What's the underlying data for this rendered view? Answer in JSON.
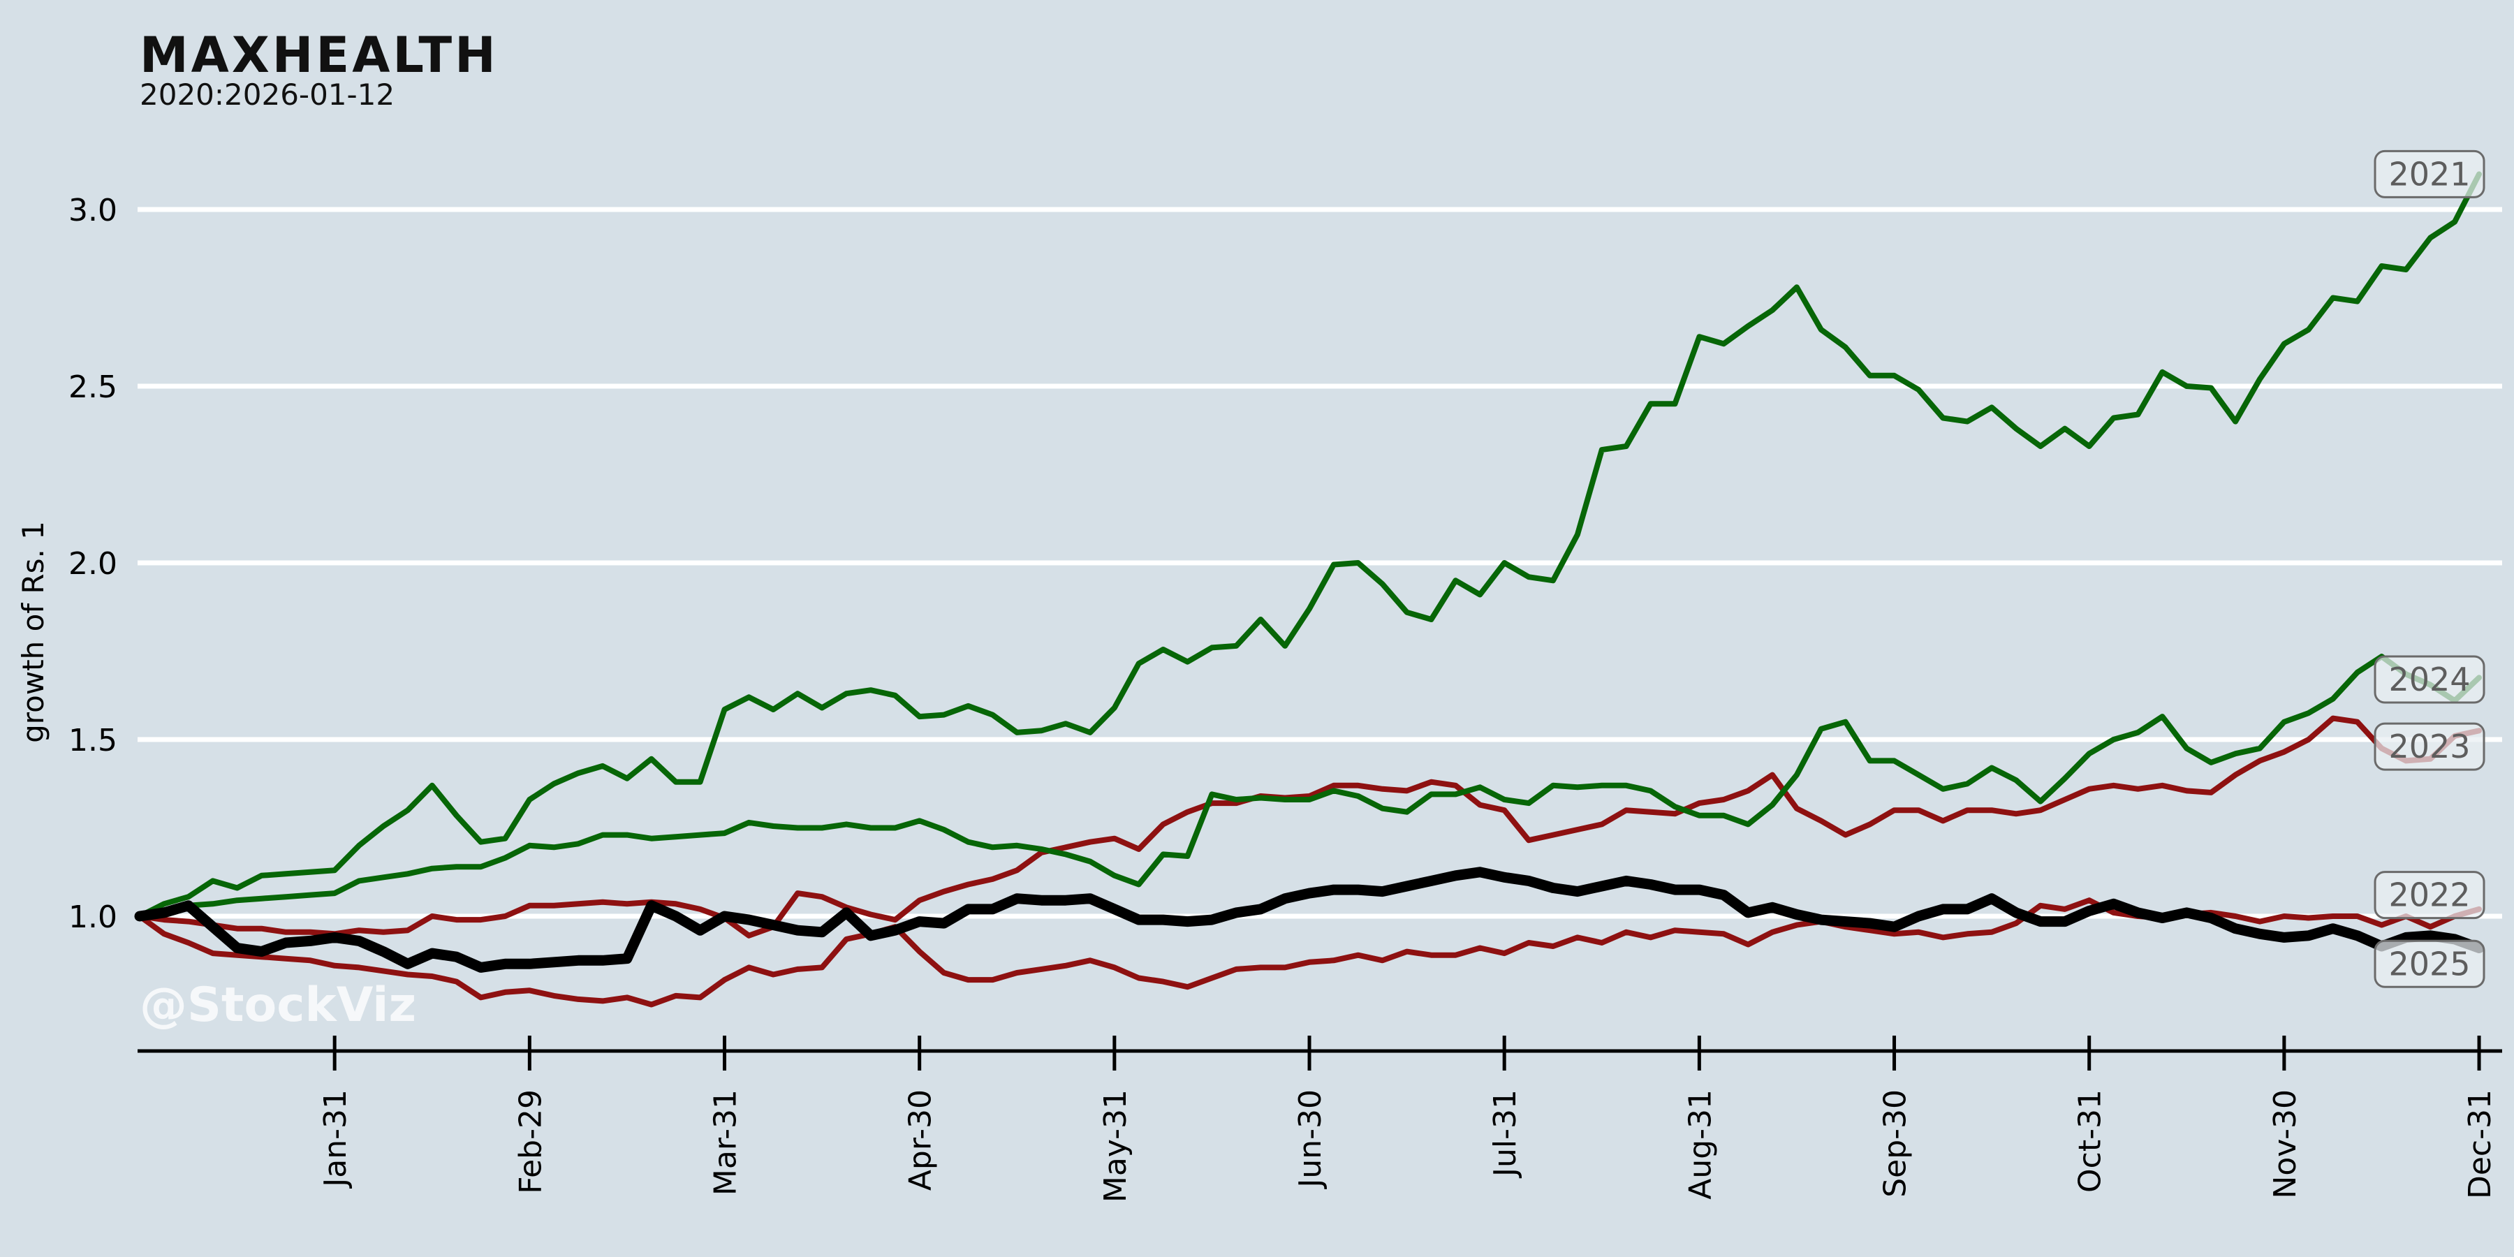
{
  "header": {
    "title": "MAXHEALTH",
    "subtitle": "2020:2026-01-12"
  },
  "watermark": "@StockViz",
  "colors": {
    "background": "#d6e0e7",
    "gridline": "#ffffff",
    "axis": "#000000",
    "green_series": "#076607",
    "red_series": "#8e1111",
    "black_series": "#000000",
    "label_box_fill": "#e9eff3",
    "label_box_border": "#6a6a6a",
    "label_text": "#5d5d5d"
  },
  "chart_data": {
    "type": "line",
    "title": "MAXHEALTH",
    "subtitle": "2020:2026-01-12",
    "ylabel": "growth of Rs. 1",
    "xlabel": "",
    "grid": "horizontal-white",
    "legend_position": "right-edge-boxes",
    "ylim": [
      0.68,
      3.22
    ],
    "y_ticks": [
      "1.0",
      "1.5",
      "2.0",
      "2.5",
      "3.0"
    ],
    "y_tick_values": [
      1.0,
      1.5,
      2.0,
      2.5,
      3.0
    ],
    "x_tick_labels": [
      "Jan-31",
      "Feb-29",
      "Mar-31",
      "Apr-30",
      "May-31",
      "Jun-30",
      "Jul-31",
      "Aug-31",
      "Sep-30",
      "Oct-31",
      "Nov-30",
      "Dec-31"
    ],
    "x_tick_months": [
      1,
      2,
      3,
      4,
      5,
      6,
      7,
      8,
      9,
      10,
      11,
      12
    ],
    "x_start_month": 0,
    "x_step_month": 0.125,
    "series": [
      {
        "name": "2021",
        "color": "#076607",
        "width": 8,
        "values": [
          1.0,
          1.035,
          1.055,
          1.1,
          1.08,
          1.115,
          1.12,
          1.125,
          1.13,
          1.2,
          1.255,
          1.3,
          1.37,
          1.285,
          1.21,
          1.22,
          1.33,
          1.375,
          1.405,
          1.425,
          1.39,
          1.445,
          1.38,
          1.38,
          1.585,
          1.62,
          1.585,
          1.63,
          1.59,
          1.63,
          1.64,
          1.625,
          1.565,
          1.57,
          1.595,
          1.57,
          1.52,
          1.525,
          1.545,
          1.52,
          1.59,
          1.715,
          1.755,
          1.72,
          1.76,
          1.765,
          1.84,
          1.765,
          1.87,
          1.995,
          2.0,
          1.94,
          1.86,
          1.84,
          1.95,
          1.91,
          2.0,
          1.96,
          1.95,
          2.08,
          2.32,
          2.33,
          2.45,
          2.45,
          2.64,
          2.62,
          2.67,
          2.715,
          2.78,
          2.66,
          2.61,
          2.53,
          2.53,
          2.49,
          2.41,
          2.4,
          2.44,
          2.38,
          2.33,
          2.38,
          2.33,
          2.41,
          2.42,
          2.54,
          2.5,
          2.495,
          2.4,
          2.52,
          2.62,
          2.66,
          2.75,
          2.74,
          2.84,
          2.83,
          2.92,
          2.965,
          3.1
        ]
      },
      {
        "name": "2022",
        "color": "#8e1111",
        "width": 8,
        "values": [
          1.0,
          0.95,
          0.925,
          0.895,
          0.89,
          0.885,
          0.88,
          0.875,
          0.86,
          0.855,
          0.845,
          0.835,
          0.83,
          0.815,
          0.77,
          0.785,
          0.79,
          0.775,
          0.765,
          0.76,
          0.77,
          0.75,
          0.775,
          0.77,
          0.82,
          0.855,
          0.835,
          0.85,
          0.855,
          0.935,
          0.95,
          0.97,
          0.9,
          0.84,
          0.82,
          0.82,
          0.84,
          0.85,
          0.86,
          0.875,
          0.855,
          0.825,
          0.815,
          0.8,
          0.825,
          0.85,
          0.855,
          0.855,
          0.87,
          0.875,
          0.89,
          0.875,
          0.9,
          0.89,
          0.89,
          0.91,
          0.895,
          0.925,
          0.915,
          0.94,
          0.925,
          0.955,
          0.94,
          0.96,
          0.955,
          0.95,
          0.92,
          0.955,
          0.975,
          0.985,
          0.97,
          0.96,
          0.95,
          0.955,
          0.94,
          0.95,
          0.955,
          0.98,
          1.03,
          1.02,
          1.045,
          1.01,
          1.0,
          0.995,
          1.005,
          1.01,
          1.0,
          0.985,
          1.0,
          0.995,
          1.0,
          1.0,
          0.975,
          1.0,
          0.97,
          1.0,
          1.02
        ]
      },
      {
        "name": "2023",
        "color": "#8e1111",
        "width": 8,
        "values": [
          1.0,
          0.99,
          0.985,
          0.975,
          0.965,
          0.965,
          0.955,
          0.955,
          0.95,
          0.96,
          0.955,
          0.96,
          1.0,
          0.99,
          0.99,
          1.0,
          1.03,
          1.03,
          1.035,
          1.04,
          1.035,
          1.04,
          1.035,
          1.02,
          0.995,
          0.945,
          0.97,
          1.065,
          1.055,
          1.025,
          1.005,
          0.99,
          1.045,
          1.07,
          1.09,
          1.105,
          1.13,
          1.18,
          1.195,
          1.21,
          1.22,
          1.19,
          1.26,
          1.295,
          1.32,
          1.32,
          1.34,
          1.335,
          1.34,
          1.37,
          1.37,
          1.36,
          1.355,
          1.38,
          1.37,
          1.315,
          1.3,
          1.215,
          1.23,
          1.245,
          1.26,
          1.3,
          1.295,
          1.29,
          1.32,
          1.33,
          1.355,
          1.4,
          1.305,
          1.27,
          1.23,
          1.26,
          1.3,
          1.3,
          1.27,
          1.3,
          1.3,
          1.29,
          1.3,
          1.33,
          1.36,
          1.37,
          1.36,
          1.37,
          1.355,
          1.35,
          1.4,
          1.44,
          1.465,
          1.5,
          1.56,
          1.55,
          1.475,
          1.44,
          1.445,
          1.51,
          1.525
        ]
      },
      {
        "name": "2024",
        "color": "#076607",
        "width": 8,
        "values": [
          1.0,
          1.015,
          1.03,
          1.035,
          1.045,
          1.05,
          1.055,
          1.06,
          1.065,
          1.1,
          1.11,
          1.12,
          1.135,
          1.14,
          1.14,
          1.165,
          1.2,
          1.195,
          1.205,
          1.23,
          1.23,
          1.22,
          1.225,
          1.23,
          1.235,
          1.265,
          1.255,
          1.25,
          1.25,
          1.26,
          1.25,
          1.25,
          1.27,
          1.245,
          1.21,
          1.195,
          1.2,
          1.19,
          1.175,
          1.155,
          1.115,
          1.09,
          1.175,
          1.17,
          1.345,
          1.33,
          1.335,
          1.33,
          1.33,
          1.355,
          1.34,
          1.305,
          1.295,
          1.345,
          1.345,
          1.365,
          1.33,
          1.32,
          1.37,
          1.365,
          1.37,
          1.37,
          1.355,
          1.31,
          1.285,
          1.285,
          1.26,
          1.315,
          1.4,
          1.53,
          1.55,
          1.44,
          1.44,
          1.4,
          1.36,
          1.375,
          1.42,
          1.385,
          1.325,
          1.39,
          1.46,
          1.5,
          1.52,
          1.565,
          1.475,
          1.435,
          1.46,
          1.475,
          1.55,
          1.575,
          1.615,
          1.69,
          1.735,
          1.685,
          1.655,
          1.61,
          1.675
        ]
      },
      {
        "name": "2025",
        "color": "#000000",
        "width": 15,
        "values": [
          1.0,
          1.01,
          1.03,
          0.97,
          0.91,
          0.9,
          0.925,
          0.93,
          0.94,
          0.93,
          0.9,
          0.865,
          0.895,
          0.885,
          0.855,
          0.865,
          0.865,
          0.87,
          0.875,
          0.875,
          0.88,
          1.03,
          1.0,
          0.96,
          1.0,
          0.99,
          0.975,
          0.96,
          0.955,
          1.01,
          0.945,
          0.96,
          0.985,
          0.98,
          1.02,
          1.02,
          1.05,
          1.045,
          1.045,
          1.05,
          1.02,
          0.99,
          0.99,
          0.985,
          0.99,
          1.01,
          1.02,
          1.05,
          1.065,
          1.075,
          1.075,
          1.07,
          1.085,
          1.1,
          1.115,
          1.125,
          1.11,
          1.1,
          1.08,
          1.07,
          1.085,
          1.1,
          1.09,
          1.075,
          1.075,
          1.06,
          1.01,
          1.025,
          1.005,
          0.99,
          0.985,
          0.98,
          0.97,
          1.0,
          1.02,
          1.02,
          1.05,
          1.01,
          0.985,
          0.985,
          1.015,
          1.035,
          1.01,
          0.995,
          1.01,
          0.995,
          0.965,
          0.95,
          0.94,
          0.945,
          0.965,
          0.945,
          0.915,
          0.94,
          0.945,
          0.935,
          0.91
        ]
      }
    ],
    "end_labels": [
      {
        "text": "2021",
        "v": 3.1
      },
      {
        "text": "2024",
        "v": 1.67
      },
      {
        "text": "2023",
        "v": 1.48
      },
      {
        "text": "2022",
        "v": 1.06
      },
      {
        "text": "2025",
        "v": 0.865
      }
    ]
  }
}
